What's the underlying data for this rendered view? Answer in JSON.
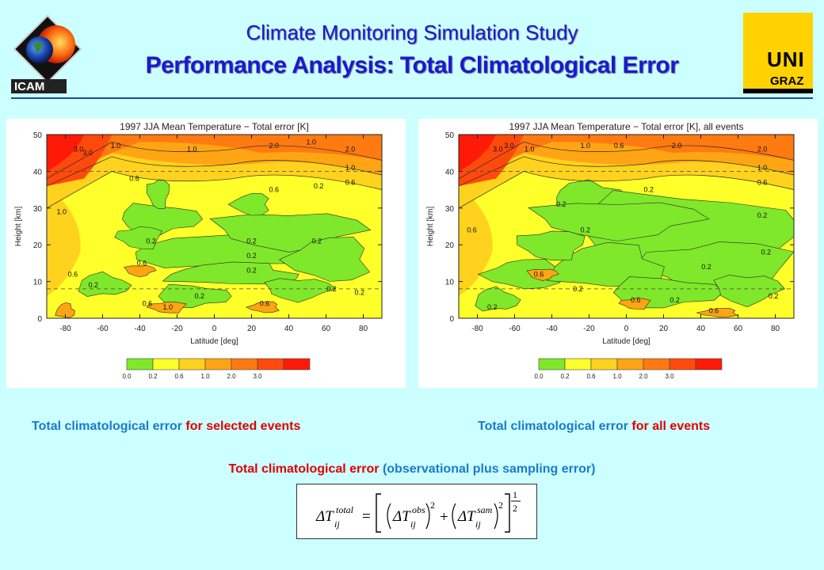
{
  "header": {
    "title": "Climate Monitoring Simulation Study",
    "subtitle": "Performance Analysis: Total Climatological Error",
    "logo_left": "ICAM",
    "logo_right_top": "UNI",
    "logo_right_bottom": "GRAZ"
  },
  "colors": {
    "title": "#1a1acc",
    "caption_blue": "#1a7acc",
    "caption_red": "#e00000",
    "background": "#ccffff"
  },
  "captions": {
    "left_part1": "Total climatological error",
    "left_part2": "for selected events",
    "right_part1": "Total climatological error",
    "right_part2": "for all events",
    "bottom_part1": "Total climatological error",
    "bottom_part2": "(observational plus sampling error)"
  },
  "formula": {
    "lhs_symbol": "ΔT",
    "lhs_sup": "total",
    "sub": "ij",
    "obs_sup": "obs",
    "sam_sup": "sam",
    "square": "2",
    "plus": "+",
    "equals": "=",
    "exp_num": "1",
    "exp_den": "2"
  },
  "chart_data": [
    {
      "type": "contour",
      "title": "1997 JJA Mean Temperature − Total error [K]",
      "xlabel": "Latitude [deg]",
      "ylabel": "Height [km]",
      "xlim": [
        -90,
        90
      ],
      "ylim": [
        0,
        50
      ],
      "xticks": [
        -80,
        -60,
        -40,
        -20,
        0,
        20,
        40,
        60,
        80
      ],
      "yticks": [
        0,
        10,
        20,
        30,
        40,
        50
      ],
      "dashed_lines_height_km": [
        8,
        40
      ],
      "legend_levels": [
        "0.0",
        "0.2",
        "0.6",
        "1.0",
        "2.0",
        "3.0"
      ],
      "legend_colors": [
        "#7fe82a",
        "#ffff2a",
        "#ffd21e",
        "#ffa514",
        "#ff7a10",
        "#ff4a0c",
        "#ff1a08"
      ],
      "contour_labels": [
        {
          "value": "3.0",
          "lat": -73,
          "h": 46
        },
        {
          "value": "3.0",
          "lat": -68,
          "h": 45
        },
        {
          "value": "1.0",
          "lat": -53,
          "h": 47
        },
        {
          "value": "1.0",
          "lat": -12,
          "h": 46
        },
        {
          "value": "2.0",
          "lat": 32,
          "h": 47
        },
        {
          "value": "1.0",
          "lat": 52,
          "h": 48
        },
        {
          "value": "2.0",
          "lat": 73,
          "h": 46
        },
        {
          "value": "1.0",
          "lat": 73,
          "h": 41
        },
        {
          "value": "0.6",
          "lat": 73,
          "h": 37
        },
        {
          "value": "0.6",
          "lat": -43,
          "h": 38
        },
        {
          "value": "0.6",
          "lat": 32,
          "h": 35
        },
        {
          "value": "0.2",
          "lat": 56,
          "h": 36
        },
        {
          "value": "1.0",
          "lat": -82,
          "h": 29
        },
        {
          "value": "0.2",
          "lat": -34,
          "h": 21
        },
        {
          "value": "0.2",
          "lat": 20,
          "h": 21
        },
        {
          "value": "0.2",
          "lat": 55,
          "h": 21
        },
        {
          "value": "0.6",
          "lat": -39,
          "h": 15
        },
        {
          "value": "0.2",
          "lat": 20,
          "h": 17
        },
        {
          "value": "0.2",
          "lat": 20,
          "h": 13
        },
        {
          "value": "0.6",
          "lat": -76,
          "h": 12
        },
        {
          "value": "0.2",
          "lat": -65,
          "h": 9
        },
        {
          "value": "0.2",
          "lat": -8,
          "h": 6
        },
        {
          "value": "0.6",
          "lat": -36,
          "h": 4
        },
        {
          "value": "1.0",
          "lat": -25,
          "h": 3
        },
        {
          "value": "0.6",
          "lat": 27,
          "h": 4
        },
        {
          "value": "0.2",
          "lat": 63,
          "h": 8
        },
        {
          "value": "0.2",
          "lat": 78,
          "h": 7
        }
      ]
    },
    {
      "type": "contour",
      "title": "1997 JJA Mean Temperature − Total error [K], all events",
      "xlabel": "Latitude [deg]",
      "ylabel": "Height [km]",
      "xlim": [
        -90,
        90
      ],
      "ylim": [
        0,
        50
      ],
      "xticks": [
        -80,
        -60,
        -40,
        -20,
        0,
        20,
        40,
        60,
        80
      ],
      "yticks": [
        0,
        10,
        20,
        30,
        40,
        50
      ],
      "dashed_lines_height_km": [
        8,
        40
      ],
      "legend_levels": [
        "0.0",
        "0.2",
        "0.6",
        "1.0",
        "2.0",
        "3.0"
      ],
      "legend_colors": [
        "#7fe82a",
        "#ffff2a",
        "#ffd21e",
        "#ffa514",
        "#ff7a10",
        "#ff4a0c",
        "#ff1a08"
      ],
      "contour_labels": [
        {
          "value": "3.0",
          "lat": -69,
          "h": 46
        },
        {
          "value": "3.0",
          "lat": -63,
          "h": 47
        },
        {
          "value": "1.0",
          "lat": -52,
          "h": 46
        },
        {
          "value": "1.0",
          "lat": -22,
          "h": 47
        },
        {
          "value": "0.6",
          "lat": -4,
          "h": 47
        },
        {
          "value": "2.0",
          "lat": 27,
          "h": 47
        },
        {
          "value": "2.0",
          "lat": 73,
          "h": 46
        },
        {
          "value": "1.0",
          "lat": 73,
          "h": 41
        },
        {
          "value": "0.6",
          "lat": 73,
          "h": 37
        },
        {
          "value": "0.2",
          "lat": 12,
          "h": 35
        },
        {
          "value": "0.2",
          "lat": -35,
          "h": 31
        },
        {
          "value": "0.2",
          "lat": 73,
          "h": 28
        },
        {
          "value": "0.2",
          "lat": -22,
          "h": 24
        },
        {
          "value": "0.6",
          "lat": -83,
          "h": 24
        },
        {
          "value": "0.2",
          "lat": 75,
          "h": 18
        },
        {
          "value": "0.6",
          "lat": -47,
          "h": 12
        },
        {
          "value": "0.2",
          "lat": 43,
          "h": 14
        },
        {
          "value": "0.2",
          "lat": -26,
          "h": 8
        },
        {
          "value": "0.6",
          "lat": 5,
          "h": 5
        },
        {
          "value": "0.2",
          "lat": 26,
          "h": 5
        },
        {
          "value": "0.6",
          "lat": 47,
          "h": 2
        },
        {
          "value": "0.2",
          "lat": -72,
          "h": 3
        },
        {
          "value": "0.2",
          "lat": 79,
          "h": 6
        }
      ]
    }
  ]
}
